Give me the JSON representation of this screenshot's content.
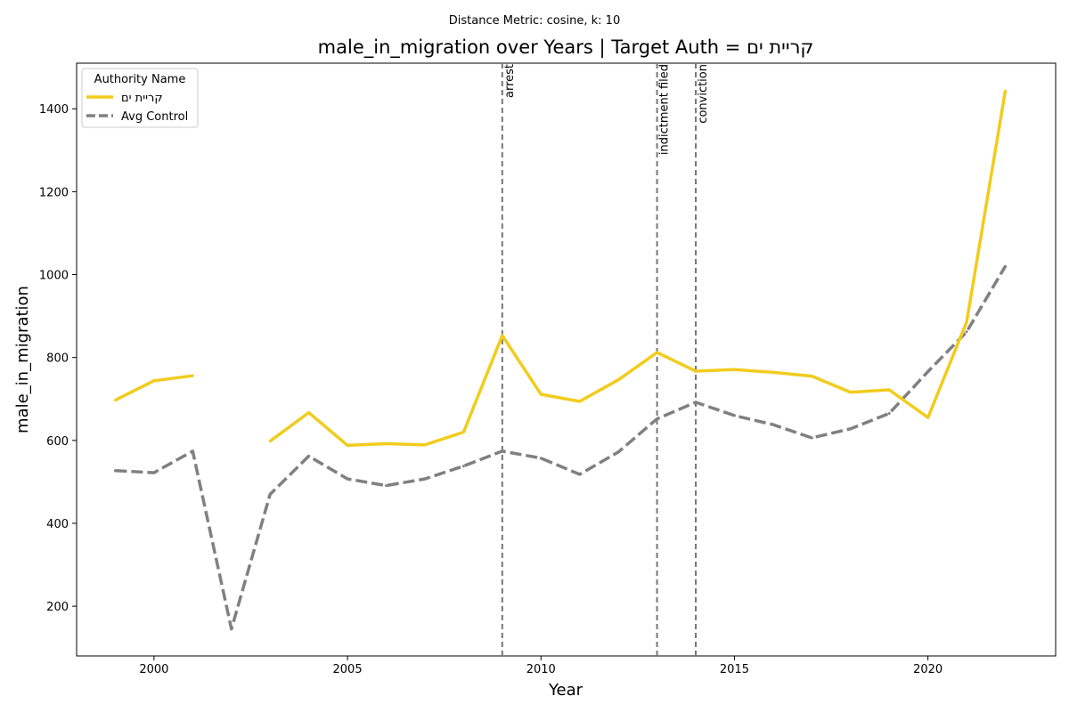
{
  "suptitle": "Distance Metric: cosine, k: 10",
  "chart_data": {
    "type": "line",
    "title": "male_in_migration over Years | Target Auth = קריית ים",
    "xlabel": "Year",
    "ylabel": "male_in_migration",
    "xlim": [
      1998,
      2023.3
    ],
    "ylim": [
      80,
      1510
    ],
    "xticks": [
      2000,
      2005,
      2010,
      2015,
      2020
    ],
    "yticks": [
      200,
      400,
      600,
      800,
      1000,
      1200,
      1400
    ],
    "legend": {
      "title": "Authority Name",
      "position": "upper-left"
    },
    "series": [
      {
        "name": "קריית ים",
        "color": "#f2cc1d",
        "style": "solid",
        "x": [
          1999,
          2000,
          2001,
          2002,
          2003,
          2004,
          2005,
          2006,
          2007,
          2008,
          2009,
          2010,
          2011,
          2012,
          2013,
          2014,
          2015,
          2016,
          2017,
          2018,
          2019,
          2020,
          2021,
          2022
        ],
        "values": [
          697,
          744,
          756,
          null,
          598,
          667,
          588,
          592,
          589,
          620,
          853,
          711,
          694,
          746,
          812,
          767,
          771,
          764,
          755,
          716,
          722,
          655,
          886,
          1443
        ]
      },
      {
        "name": "Avg Control",
        "color": "#808080",
        "style": "dashed",
        "x": [
          1999,
          2000,
          2001,
          2002,
          2003,
          2004,
          2005,
          2006,
          2007,
          2008,
          2009,
          2010,
          2011,
          2012,
          2013,
          2014,
          2015,
          2016,
          2017,
          2018,
          2019,
          2020,
          2021,
          2022
        ],
        "values": [
          527,
          522,
          574,
          145,
          470,
          562,
          507,
          491,
          507,
          538,
          574,
          557,
          518,
          572,
          652,
          692,
          660,
          638,
          606,
          628,
          665,
          766,
          862,
          1020
        ]
      }
    ],
    "events": [
      {
        "x": 2009,
        "label": "arrest"
      },
      {
        "x": 2013,
        "label": "indictment filed"
      },
      {
        "x": 2014,
        "label": "conviction"
      }
    ]
  }
}
